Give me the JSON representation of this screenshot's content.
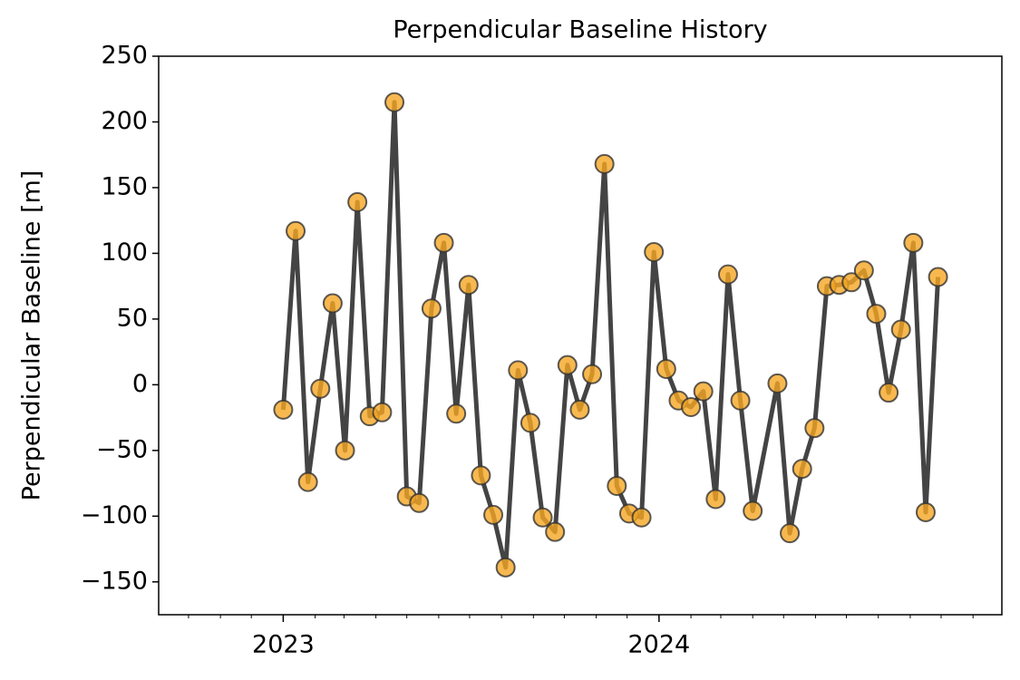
{
  "chart_data": {
    "type": "line",
    "title": "Perpendicular Baseline History",
    "y_label": "Perpendicular Baseline [m]",
    "x": [
      "2023-01-01",
      "2023-01-13",
      "2023-01-25",
      "2023-02-06",
      "2023-02-18",
      "2023-03-02",
      "2023-03-14",
      "2023-03-26",
      "2023-04-07",
      "2023-04-19",
      "2023-05-01",
      "2023-05-13",
      "2023-05-25",
      "2023-06-06",
      "2023-06-18",
      "2023-06-30",
      "2023-07-12",
      "2023-07-24",
      "2023-08-05",
      "2023-08-17",
      "2023-08-29",
      "2023-09-10",
      "2023-09-22",
      "2023-10-04",
      "2023-10-16",
      "2023-10-28",
      "2023-11-09",
      "2023-11-21",
      "2023-12-03",
      "2023-12-15",
      "2023-12-27",
      "2024-01-08",
      "2024-01-20",
      "2024-02-01",
      "2024-02-13",
      "2024-02-25",
      "2024-03-08",
      "2024-03-20",
      "2024-04-01",
      "2024-04-25",
      "2024-05-07",
      "2024-05-19",
      "2024-05-31",
      "2024-06-12",
      "2024-06-24",
      "2024-07-06",
      "2024-07-18",
      "2024-07-30",
      "2024-08-11",
      "2024-08-23",
      "2024-09-04",
      "2024-09-16",
      "2024-09-28"
    ],
    "series": [
      {
        "name": "Perpendicular Baseline",
        "color": "#f5a623",
        "line_color": "#444444",
        "values": [
          -19,
          117,
          -74,
          -3,
          62,
          -50,
          139,
          -24,
          -21,
          215,
          -85,
          -90,
          58,
          108,
          -22,
          76,
          -69,
          -99,
          -139,
          11,
          -29,
          -101,
          -112,
          15,
          -19,
          8,
          168,
          -77,
          -98,
          -101,
          101,
          12,
          -12,
          -17,
          -5,
          -87,
          84,
          -12,
          -96,
          1,
          -113,
          -64,
          -33,
          75,
          76,
          78,
          87,
          54,
          -6,
          42,
          108,
          -97,
          82
        ]
      }
    ],
    "xlim": [
      "2022-09-02",
      "2024-11-29"
    ],
    "xticks": [
      {
        "value": "2023-01-01",
        "label": "2023"
      },
      {
        "value": "2024-01-01",
        "label": "2024"
      }
    ],
    "ylim": [
      -175,
      250
    ],
    "yticks": [
      {
        "value": -150,
        "label": "−150"
      },
      {
        "value": -100,
        "label": "−100"
      },
      {
        "value": -50,
        "label": "−50"
      },
      0,
      50,
      100,
      150,
      200,
      250
    ],
    "grid": false
  }
}
